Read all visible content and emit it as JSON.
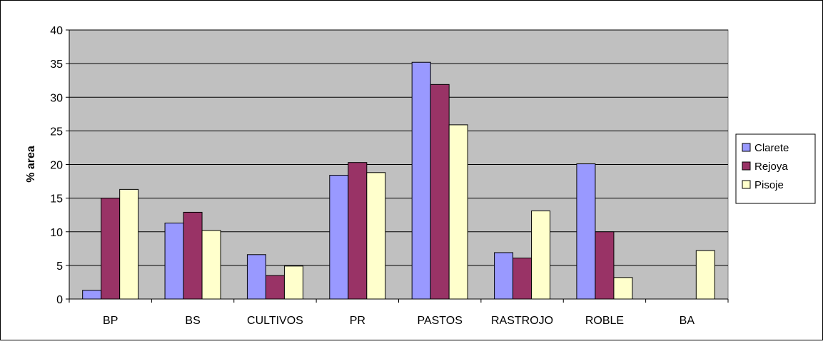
{
  "chart_data": {
    "type": "bar",
    "title": "",
    "xlabel": "",
    "ylabel": "% area",
    "ylim": [
      0,
      40
    ],
    "ytick_step": 5,
    "grid": true,
    "legend_position": "right",
    "plot_background": "#c0c0c0",
    "categories": [
      "BP",
      "BS",
      "CULTIVOS",
      "PR",
      "PASTOS",
      "RASTROJO",
      "ROBLE",
      "BA"
    ],
    "series": [
      {
        "name": "Clarete",
        "color": "#9999ff",
        "values": [
          1.3,
          11.3,
          6.6,
          18.4,
          35.2,
          6.9,
          20.1,
          0
        ]
      },
      {
        "name": "Rejoya",
        "color": "#993366",
        "values": [
          15.0,
          12.9,
          3.5,
          20.3,
          31.9,
          6.1,
          10.0,
          0
        ]
      },
      {
        "name": "Pisoje",
        "color": "#ffffcc",
        "values": [
          16.3,
          10.2,
          4.9,
          18.8,
          25.9,
          13.1,
          3.2,
          7.2
        ]
      }
    ]
  }
}
